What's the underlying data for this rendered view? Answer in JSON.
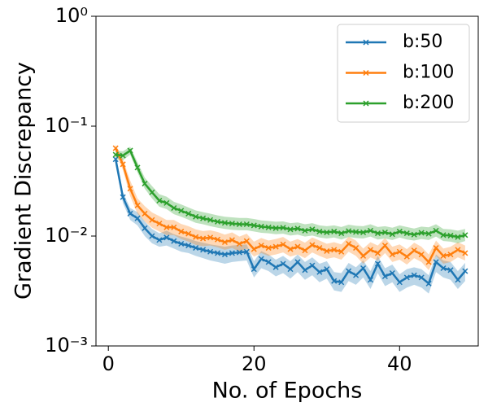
{
  "chart_data": {
    "type": "line",
    "yscale": "log",
    "marker": "x",
    "legend": "upper right",
    "xlabel": "No. of Epochs",
    "ylabel": "Gradient Discrepancy",
    "x": [
      1,
      2,
      3,
      4,
      5,
      6,
      7,
      8,
      9,
      10,
      11,
      12,
      13,
      14,
      15,
      16,
      17,
      18,
      19,
      20,
      21,
      22,
      23,
      24,
      25,
      26,
      27,
      28,
      29,
      30,
      31,
      32,
      33,
      34,
      35,
      36,
      37,
      38,
      39,
      40,
      41,
      42,
      43,
      44,
      45,
      46,
      47,
      48,
      49
    ],
    "xlim": [
      -1.7,
      50.8
    ],
    "xticks": [
      0,
      20,
      40
    ],
    "ylim": [
      0.001,
      1
    ],
    "yticks": [
      {
        "value": 1,
        "label": "10⁰"
      },
      {
        "value": 0.1,
        "label": "10⁻¹"
      },
      {
        "value": 0.01,
        "label": "10⁻²"
      },
      {
        "value": 0.001,
        "label": "10⁻³"
      }
    ],
    "series": [
      {
        "name": "b:50",
        "color": "#1f77b4",
        "values": [
          0.05,
          0.0226,
          0.016,
          0.0145,
          0.0118,
          0.01,
          0.0092,
          0.0097,
          0.009,
          0.0085,
          0.0082,
          0.0078,
          0.0075,
          0.0072,
          0.007,
          0.0068,
          0.007,
          0.0071,
          0.0072,
          0.005,
          0.0062,
          0.0058,
          0.0052,
          0.0056,
          0.005,
          0.0058,
          0.0049,
          0.0054,
          0.0047,
          0.005,
          0.0039,
          0.0038,
          0.0048,
          0.0044,
          0.0051,
          0.004,
          0.0056,
          0.0043,
          0.0046,
          0.0038,
          0.0042,
          0.0044,
          0.0042,
          0.0037,
          0.0058,
          0.0051,
          0.0049,
          0.004,
          0.0048
        ],
        "lower": [
          0.044,
          0.02,
          0.014,
          0.0125,
          0.01,
          0.0086,
          0.008,
          0.0082,
          0.0077,
          0.0072,
          0.007,
          0.0066,
          0.0063,
          0.006,
          0.0058,
          0.0056,
          0.0058,
          0.0059,
          0.006,
          0.0042,
          0.0051,
          0.0048,
          0.0043,
          0.0046,
          0.0041,
          0.0047,
          0.004,
          0.0044,
          0.0038,
          0.0041,
          0.0032,
          0.0031,
          0.0039,
          0.0036,
          0.0042,
          0.0033,
          0.0046,
          0.0035,
          0.0038,
          0.0031,
          0.0034,
          0.0036,
          0.0034,
          0.003,
          0.0047,
          0.0042,
          0.004,
          0.0033,
          0.0039
        ],
        "upper": [
          0.056,
          0.025,
          0.018,
          0.0165,
          0.0136,
          0.0116,
          0.0106,
          0.0112,
          0.0104,
          0.0099,
          0.0095,
          0.009,
          0.0087,
          0.0084,
          0.0082,
          0.008,
          0.0082,
          0.0083,
          0.0084,
          0.0059,
          0.0073,
          0.0068,
          0.0061,
          0.0066,
          0.0059,
          0.0068,
          0.0058,
          0.0064,
          0.0056,
          0.0059,
          0.0047,
          0.0046,
          0.0057,
          0.0052,
          0.006,
          0.0048,
          0.0066,
          0.0051,
          0.0055,
          0.0045,
          0.005,
          0.0052,
          0.005,
          0.0044,
          0.0068,
          0.006,
          0.0058,
          0.0048,
          0.0057
        ]
      },
      {
        "name": "b:100",
        "color": "#ff7f0e",
        "values": [
          0.063,
          0.045,
          0.027,
          0.019,
          0.016,
          0.014,
          0.013,
          0.012,
          0.012,
          0.011,
          0.0105,
          0.0098,
          0.0095,
          0.0097,
          0.0093,
          0.0088,
          0.0092,
          0.0085,
          0.009,
          0.0076,
          0.0082,
          0.0078,
          0.008,
          0.0084,
          0.0076,
          0.008,
          0.0074,
          0.0083,
          0.0078,
          0.0073,
          0.0075,
          0.0072,
          0.0085,
          0.0078,
          0.0066,
          0.0075,
          0.007,
          0.0082,
          0.0068,
          0.0072,
          0.0065,
          0.0074,
          0.0068,
          0.0058,
          0.0078,
          0.0066,
          0.0068,
          0.0075,
          0.007
        ],
        "lower": [
          0.058,
          0.04,
          0.023,
          0.016,
          0.0136,
          0.0119,
          0.011,
          0.0102,
          0.0102,
          0.0094,
          0.0089,
          0.0083,
          0.0081,
          0.0082,
          0.0079,
          0.0075,
          0.0078,
          0.0072,
          0.0077,
          0.0065,
          0.007,
          0.0066,
          0.0068,
          0.0071,
          0.0065,
          0.0068,
          0.0063,
          0.0071,
          0.0066,
          0.0062,
          0.0064,
          0.0061,
          0.0072,
          0.0066,
          0.0056,
          0.0064,
          0.006,
          0.007,
          0.0058,
          0.0061,
          0.0055,
          0.0063,
          0.0058,
          0.0049,
          0.0066,
          0.0056,
          0.0058,
          0.0064,
          0.006
        ],
        "upper": [
          0.068,
          0.05,
          0.032,
          0.022,
          0.0187,
          0.0164,
          0.0152,
          0.014,
          0.014,
          0.0129,
          0.0123,
          0.0115,
          0.0111,
          0.0113,
          0.0109,
          0.0103,
          0.0108,
          0.0099,
          0.0105,
          0.0089,
          0.0096,
          0.0091,
          0.0094,
          0.0098,
          0.0089,
          0.0094,
          0.0087,
          0.0097,
          0.0091,
          0.0085,
          0.0088,
          0.0084,
          0.0099,
          0.0091,
          0.0077,
          0.0088,
          0.0082,
          0.0096,
          0.008,
          0.0084,
          0.0076,
          0.0087,
          0.008,
          0.0068,
          0.0091,
          0.0077,
          0.008,
          0.0088,
          0.0082
        ]
      },
      {
        "name": "b:200",
        "color": "#2ca02c",
        "values": [
          0.055,
          0.054,
          0.06,
          0.042,
          0.03,
          0.025,
          0.021,
          0.02,
          0.018,
          0.017,
          0.016,
          0.015,
          0.0145,
          0.014,
          0.0135,
          0.0132,
          0.013,
          0.0128,
          0.0128,
          0.0125,
          0.0122,
          0.012,
          0.0118,
          0.0119,
          0.0115,
          0.0117,
          0.0112,
          0.0115,
          0.011,
          0.0108,
          0.011,
          0.0106,
          0.0111,
          0.0109,
          0.0108,
          0.0112,
          0.0106,
          0.0108,
          0.0104,
          0.011,
          0.0106,
          0.0103,
          0.0107,
          0.0105,
          0.0112,
          0.0102,
          0.0101,
          0.0098,
          0.0102
        ],
        "lower": [
          0.05,
          0.049,
          0.055,
          0.038,
          0.027,
          0.022,
          0.0185,
          0.0176,
          0.0158,
          0.015,
          0.0141,
          0.0132,
          0.0128,
          0.0123,
          0.0119,
          0.0116,
          0.0114,
          0.0113,
          0.0113,
          0.011,
          0.0107,
          0.0106,
          0.0104,
          0.0105,
          0.0101,
          0.0103,
          0.0099,
          0.0101,
          0.0097,
          0.0095,
          0.0097,
          0.0093,
          0.0098,
          0.0096,
          0.0095,
          0.0099,
          0.0093,
          0.0095,
          0.0092,
          0.0097,
          0.0093,
          0.0091,
          0.0094,
          0.0092,
          0.0099,
          0.009,
          0.0089,
          0.0086,
          0.009
        ],
        "upper": [
          0.06,
          0.059,
          0.065,
          0.047,
          0.034,
          0.0285,
          0.024,
          0.0228,
          0.0205,
          0.0194,
          0.0182,
          0.0171,
          0.0165,
          0.016,
          0.0154,
          0.015,
          0.0148,
          0.0146,
          0.0146,
          0.0143,
          0.0139,
          0.0137,
          0.0135,
          0.0136,
          0.0131,
          0.0133,
          0.0128,
          0.0131,
          0.0125,
          0.0123,
          0.0125,
          0.0121,
          0.0127,
          0.0124,
          0.0123,
          0.0128,
          0.0121,
          0.0123,
          0.0119,
          0.0125,
          0.0121,
          0.0117,
          0.0122,
          0.012,
          0.0128,
          0.0116,
          0.0115,
          0.0112,
          0.0116
        ]
      }
    ]
  }
}
